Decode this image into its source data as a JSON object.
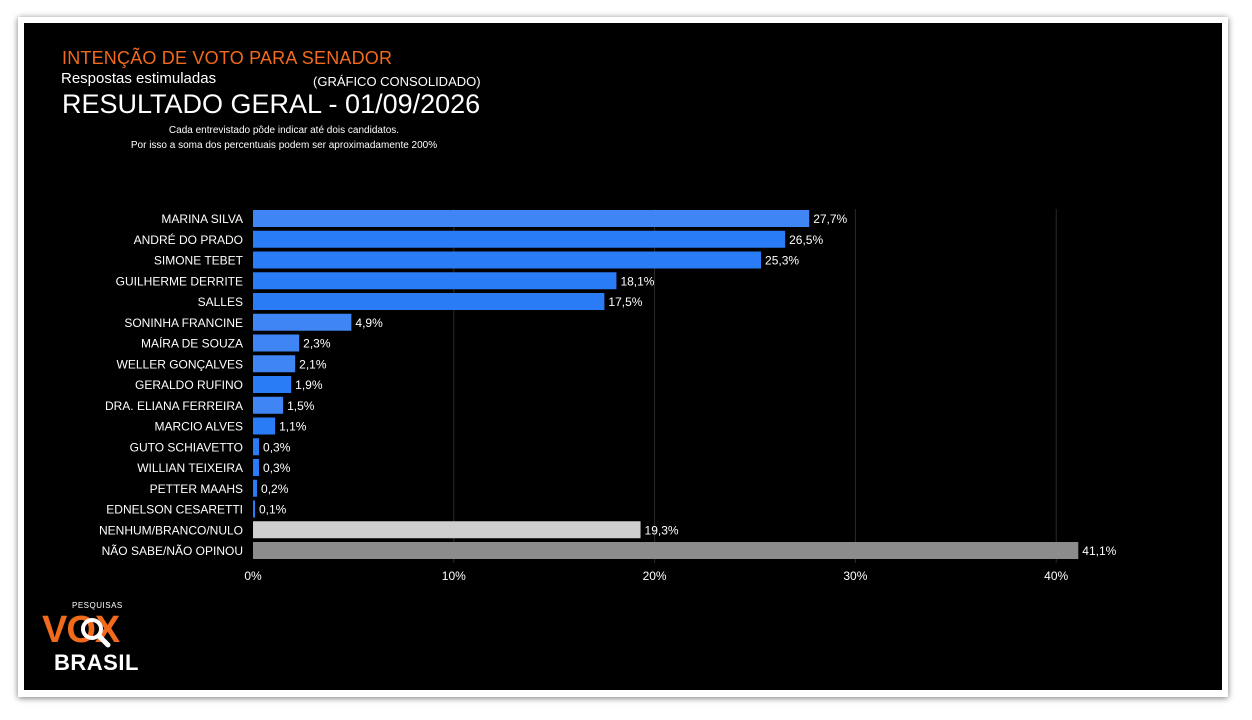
{
  "header": {
    "title": "INTENÇÃO DE VOTO PARA SENADOR",
    "subtitle": "Respostas estimuladas",
    "subtitle_note": "(GRÁFICO CONSOLIDADO)",
    "result_title": "RESULTADO GERAL - 01/09/2026",
    "note_line1": "Cada entrevistado pôde indicar até dois candidatos.",
    "note_line2": "Por isso a soma dos percentuais podem ser aproximadamente 200%"
  },
  "logo": {
    "small_text": "PESQUISAS",
    "brand": "VOX",
    "country": "BRASIL"
  },
  "colors": {
    "background": "#000000",
    "title_orange": "#f26a1b",
    "bar_bright_blue": "#2a7bf6",
    "bar_mid_blue": "#3f86f4",
    "bar_light_gray": "#cfcfcf",
    "bar_dark_gray": "#8c8c8c"
  },
  "chart_data": {
    "type": "bar",
    "orientation": "horizontal",
    "categories": [
      "MARINA SILVA",
      "ANDRÉ DO PRADO",
      "SIMONE TEBET",
      "GUILHERME DERRITE",
      "SALLES",
      "SONINHA FRANCINE",
      "MAÍRA DE SOUZA",
      "WELLER GONÇALVES",
      "GERALDO RUFINO",
      "DRA. ELIANA FERREIRA",
      "MARCIO ALVES",
      "GUTO SCHIAVETTO",
      "WILLIAN TEIXEIRA",
      "PETTER MAAHS",
      "EDNELSON CESARETTI",
      "NENHUM/BRANCO/NULO",
      "NÃO SABE/NÃO OPINOU"
    ],
    "values": [
      27.7,
      26.5,
      25.3,
      18.1,
      17.5,
      4.9,
      2.3,
      2.1,
      1.9,
      1.5,
      1.1,
      0.3,
      0.3,
      0.2,
      0.1,
      19.3,
      41.1
    ],
    "value_labels": [
      "27,7%",
      "26,5%",
      "25,3%",
      "18,1%",
      "17,5%",
      "4,9%",
      "2,3%",
      "2,1%",
      "1,9%",
      "1,5%",
      "1,1%",
      "0,3%",
      "0,3%",
      "0,2%",
      "0,1%",
      "19,3%",
      "41,1%"
    ],
    "bar_colors": [
      "#3f86f4",
      "#2a7bf6",
      "#2a7bf6",
      "#2a7bf6",
      "#2a7bf6",
      "#3f86f4",
      "#3f86f4",
      "#3f86f4",
      "#2a7bf6",
      "#3f86f4",
      "#2a7bf6",
      "#2a7bf6",
      "#2a7bf6",
      "#2a7bf6",
      "#2a7bf6",
      "#cfcfcf",
      "#8c8c8c"
    ],
    "xticks": [
      0,
      10,
      20,
      30,
      40
    ],
    "xtick_labels": [
      "0%",
      "10%",
      "20%",
      "30%",
      "40%"
    ],
    "xlim": [
      0,
      40
    ],
    "grid": true
  }
}
